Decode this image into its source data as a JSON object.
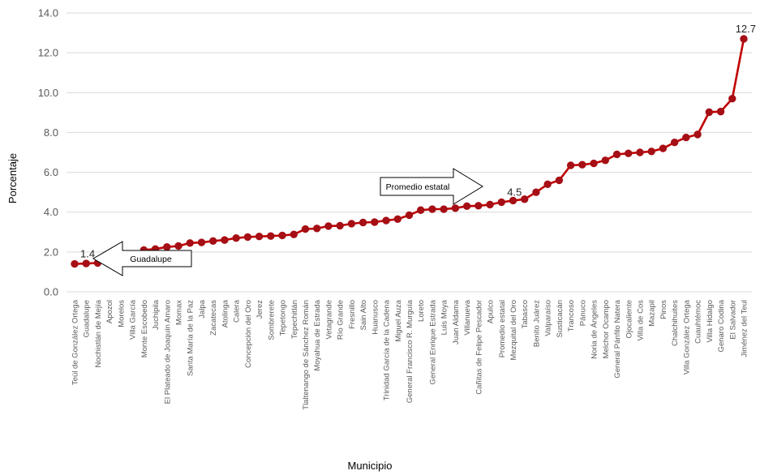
{
  "chart_data": {
    "type": "line",
    "xlabel": "Municipio",
    "ylabel": "Porcentaje",
    "ylim": [
      0,
      14
    ],
    "yticks": [
      "0.0",
      "2.0",
      "4.0",
      "6.0",
      "8.0",
      "10.0",
      "12.0",
      "14.0"
    ],
    "grid": true,
    "legend": "none",
    "colors": {
      "line": "#c00000",
      "marker": "#a50f15",
      "grid": "#d9d9d9"
    },
    "categories": [
      "Teúl de González Ortega",
      "Guadalupe",
      "Nochistlán de Mejía",
      "Apozol",
      "Morelos",
      "Villa García",
      "Monte Escobedo",
      "Juchipila",
      "El Plateado de Joaquín Amaro",
      "Momax",
      "Santa María de la Paz",
      "Jalpa",
      "Zacatecas",
      "Atolinga",
      "Calera",
      "Concepción del Oro",
      "Jerez",
      "Sombrerete",
      "Tepetongo",
      "Tepechitlán",
      "Tlaltenango de Sánchez Román",
      "Moyahua de Estrada",
      "Vetagrande",
      "Río Grande",
      "Fresnillo",
      "Sain Alto",
      "Huanusco",
      "Trinidad García de la Cadena",
      "Miguel Auza",
      "General Francisco R. Murguía",
      "Loreto",
      "General Enrique Estrada",
      "Luis Moya",
      "Juan Aldama",
      "Villanueva",
      "Cañitas de Felipe Pescador",
      "Apulco",
      "Promedio estatal",
      "Mezquital del Oro",
      "Tabasco",
      "Benito Juárez",
      "Valparaíso",
      "Susticacán",
      "Trancoso",
      "Pánuco",
      "Noria de Ángeles",
      "Melchor Ocampo",
      "General Pánfilo Natera",
      "Ojocaliente",
      "Villa de Cos",
      "Mazapil",
      "Pinos",
      "Chalchihuites",
      "Villa González Ortega",
      "Cuauhtémoc",
      "Villa Hidalgo",
      "Genaro Codina",
      "El Salvador",
      "Jiménez del Teul"
    ],
    "values": [
      1.4,
      1.42,
      1.45,
      1.6,
      1.7,
      1.85,
      2.1,
      2.15,
      2.25,
      2.3,
      2.45,
      2.48,
      2.55,
      2.6,
      2.7,
      2.75,
      2.78,
      2.8,
      2.83,
      2.88,
      3.15,
      3.18,
      3.3,
      3.32,
      3.42,
      3.48,
      3.5,
      3.58,
      3.65,
      3.85,
      4.1,
      4.15,
      4.15,
      4.2,
      4.3,
      4.32,
      4.38,
      4.5,
      4.58,
      4.65,
      5.0,
      5.4,
      5.6,
      6.35,
      6.38,
      6.45,
      6.6,
      6.9,
      6.95,
      7.0,
      7.05,
      7.2,
      7.5,
      7.75,
      7.9,
      9.02,
      9.05,
      9.7,
      12.7
    ],
    "data_labels": [
      {
        "category": "Teúl de González Ortega",
        "text": "1.4"
      },
      {
        "category": "Promedio estatal",
        "text": "4.5"
      },
      {
        "category": "Jiménez del Teul",
        "text": "12.7"
      }
    ],
    "annotations": [
      {
        "text": "Promedio estatal",
        "shape": "right-arrow"
      },
      {
        "text": "Guadalupe",
        "shape": "left-arrow"
      }
    ]
  }
}
